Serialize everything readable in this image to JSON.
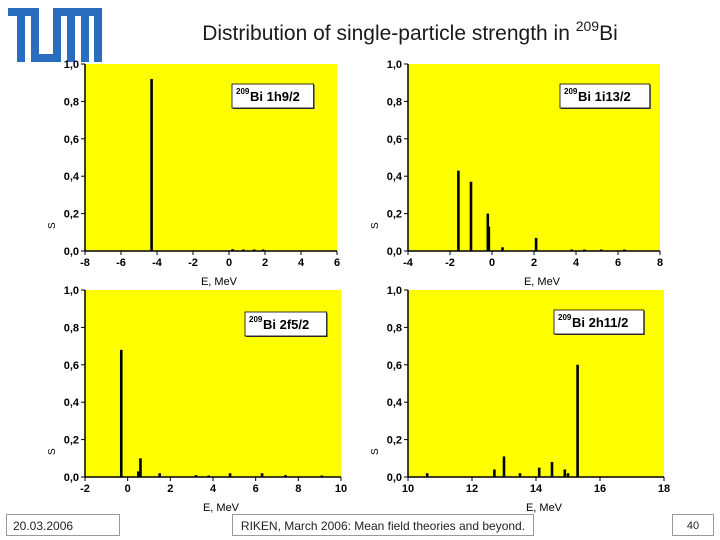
{
  "header": {
    "title_text": "Distribution of single-particle strength in ",
    "title_sup": "209",
    "title_element": "Bi",
    "logo_text": "TUM"
  },
  "footer": {
    "date": "20.03.2006",
    "center": "RIKEN, March 2006: Mean field theories and beyond.",
    "page": "40"
  },
  "colors": {
    "plot_bg": "#ffff00",
    "bars": "#000000",
    "label_box": "#ffffff"
  },
  "chart_data": [
    {
      "type": "bar",
      "title": "",
      "label_sup": "209",
      "label": "Bi 1h9/2",
      "xlabel": "E, MeV",
      "ylabel": "S",
      "xlim": [
        -8,
        6
      ],
      "ylim": [
        0,
        1.0
      ],
      "xticks": [
        -8,
        -6,
        -4,
        -2,
        0,
        2,
        4,
        6
      ],
      "yticks": [
        0.0,
        0.2,
        0.4,
        0.6,
        0.8,
        1.0
      ],
      "ytick_labels": [
        "0,0",
        "0,2",
        "0,4",
        "0,6",
        "0,8",
        "1,0"
      ],
      "points": [
        {
          "x": -4.3,
          "y": 0.92
        },
        {
          "x": 0.2,
          "y": 0.01
        },
        {
          "x": 0.8,
          "y": 0.006
        },
        {
          "x": 1.4,
          "y": 0.006
        },
        {
          "x": 1.9,
          "y": 0.006
        }
      ]
    },
    {
      "type": "bar",
      "title": "",
      "label_sup": "209",
      "label": "Bi 1i13/2",
      "xlabel": "E, MeV",
      "ylabel": "S",
      "xlim": [
        -4,
        8
      ],
      "ylim": [
        0,
        1.0
      ],
      "xticks": [
        -4,
        -2,
        0,
        2,
        4,
        6,
        8
      ],
      "yticks": [
        0.0,
        0.2,
        0.4,
        0.6,
        0.8,
        1.0
      ],
      "ytick_labels": [
        "0,0",
        "0,2",
        "0,4",
        "0,6",
        "0,8",
        "1,0"
      ],
      "points": [
        {
          "x": -1.6,
          "y": 0.43
        },
        {
          "x": -1.0,
          "y": 0.37
        },
        {
          "x": -0.2,
          "y": 0.2
        },
        {
          "x": -0.15,
          "y": 0.13
        },
        {
          "x": 0.5,
          "y": 0.02
        },
        {
          "x": 2.1,
          "y": 0.07
        },
        {
          "x": 3.8,
          "y": 0.005
        },
        {
          "x": 4.4,
          "y": 0.008
        },
        {
          "x": 5.2,
          "y": 0.005
        },
        {
          "x": 6.3,
          "y": 0.004
        }
      ]
    },
    {
      "type": "bar",
      "title": "",
      "label_sup": "209",
      "label": "Bi 2f5/2",
      "xlabel": "E, MeV",
      "ylabel": "S",
      "xlim": [
        -2,
        10
      ],
      "ylim": [
        0,
        1.0
      ],
      "xticks": [
        -2,
        0,
        2,
        4,
        6,
        8,
        10
      ],
      "yticks": [
        0.0,
        0.2,
        0.4,
        0.6,
        0.8,
        1.0
      ],
      "ytick_labels": [
        "0,0",
        "0,2",
        "0,4",
        "0,6",
        "0,8",
        "1,0"
      ],
      "points": [
        {
          "x": -0.3,
          "y": 0.68
        },
        {
          "x": 0.6,
          "y": 0.1
        },
        {
          "x": 0.5,
          "y": 0.03
        },
        {
          "x": 1.5,
          "y": 0.02
        },
        {
          "x": 3.2,
          "y": 0.01
        },
        {
          "x": 3.8,
          "y": 0.008
        },
        {
          "x": 4.8,
          "y": 0.02
        },
        {
          "x": 6.3,
          "y": 0.02
        },
        {
          "x": 7.4,
          "y": 0.01
        },
        {
          "x": 9.1,
          "y": 0.006
        }
      ]
    },
    {
      "type": "bar",
      "title": "",
      "label_sup": "209",
      "label": "Bi 2h11/2",
      "xlabel": "E, MeV",
      "ylabel": "S",
      "xlim": [
        10,
        18
      ],
      "ylim": [
        0,
        1.0
      ],
      "xticks": [
        10,
        12,
        14,
        16,
        18
      ],
      "yticks": [
        0.0,
        0.2,
        0.4,
        0.6,
        0.8,
        1.0
      ],
      "ytick_labels": [
        "0,0",
        "0,2",
        "0,4",
        "0,6",
        "0,8",
        "1,0"
      ],
      "points": [
        {
          "x": 10.6,
          "y": 0.02
        },
        {
          "x": 12.7,
          "y": 0.04
        },
        {
          "x": 13.0,
          "y": 0.11
        },
        {
          "x": 13.5,
          "y": 0.02
        },
        {
          "x": 14.1,
          "y": 0.05
        },
        {
          "x": 14.5,
          "y": 0.08
        },
        {
          "x": 14.9,
          "y": 0.04
        },
        {
          "x": 15.3,
          "y": 0.6
        },
        {
          "x": 15.0,
          "y": 0.02
        }
      ]
    }
  ]
}
